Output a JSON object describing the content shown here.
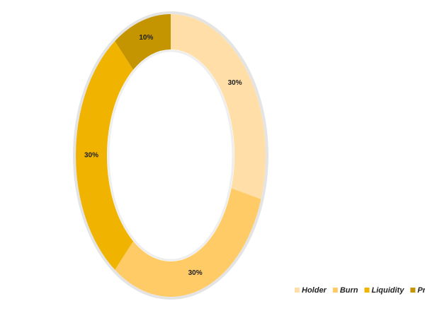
{
  "chart_data": {
    "type": "pie",
    "categories": [
      "Holder",
      "Burn",
      "Liquidity",
      "Prize"
    ],
    "values": [
      30,
      30,
      30,
      10
    ],
    "value_labels": [
      "30%",
      "30%",
      "30%",
      "10%"
    ],
    "colors": [
      "#FFDEA8",
      "#FFCB66",
      "#F0B400",
      "#C49500"
    ],
    "donut": true,
    "legend": "bottom-right"
  }
}
